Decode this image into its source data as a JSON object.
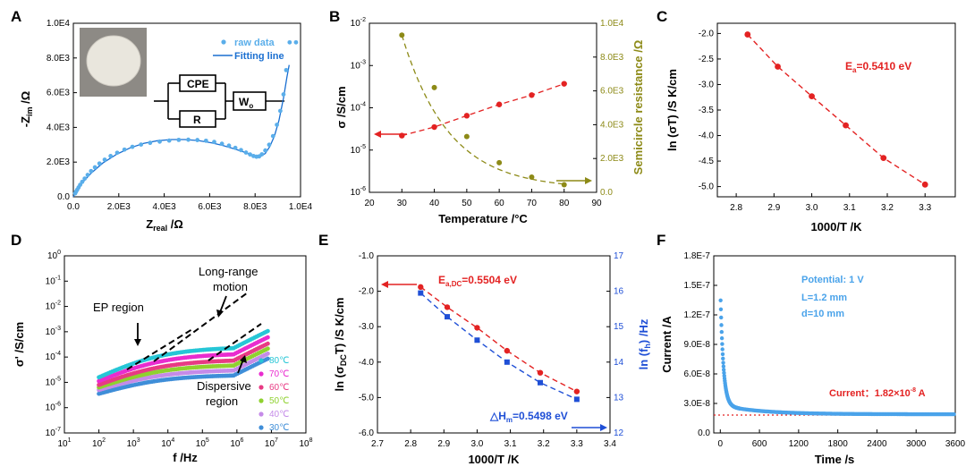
{
  "chart_data": [
    {
      "panel": "A",
      "type": "scatter",
      "xlabel": "Z",
      "xlabel_sub": "real",
      "xlabel_unit": " /Ω",
      "ylabel": "-Z",
      "ylabel_sub": "im",
      "ylabel_unit": " /Ω",
      "xlim": [
        0,
        10000
      ],
      "ylim": [
        0,
        10000
      ],
      "xticks": [
        0,
        2000,
        4000,
        6000,
        8000,
        10000
      ],
      "xtick_labels": [
        "0.0",
        "2.0E3",
        "4.0E3",
        "6.0E3",
        "8.0E3",
        "1.0E4"
      ],
      "yticks": [
        0,
        2000,
        4000,
        6000,
        8000,
        10000
      ],
      "ytick_labels": [
        "0.0",
        "2.0E3",
        "4.0E3",
        "6.0E3",
        "8.0E3",
        "1.0E4"
      ],
      "legend": [
        "raw data",
        "Fitting line"
      ],
      "legend_position": "top-right",
      "circuit": {
        "elements": [
          "CPE",
          "R",
          "W",
          "o"
        ]
      },
      "series": [
        {
          "name": "raw data",
          "marker": "circle",
          "color": "#5aaeea",
          "x": [
            80,
            120,
            170,
            230,
            300,
            390,
            500,
            630,
            780,
            950,
            1150,
            1380,
            1640,
            1930,
            2250,
            2600,
            2980,
            3380,
            3800,
            4220,
            4640,
            5060,
            5460,
            5840,
            6200,
            6540,
            6850,
            7130,
            7380,
            7600,
            7780,
            7930,
            8060,
            8180,
            8300,
            8450,
            8620,
            8790,
            8960,
            9110,
            9250,
            9370,
            9520,
            9800
          ],
          "y": [
            200,
            300,
            410,
            540,
            690,
            860,
            1050,
            1260,
            1480,
            1700,
            1920,
            2140,
            2350,
            2540,
            2720,
            2880,
            3010,
            3110,
            3180,
            3240,
            3280,
            3290,
            3270,
            3230,
            3160,
            3060,
            2950,
            2820,
            2690,
            2550,
            2440,
            2350,
            2310,
            2330,
            2450,
            2670,
            3000,
            3500,
            4150,
            4950,
            5900,
            7300,
            8900,
            8900
          ]
        },
        {
          "name": "Fitting line",
          "color": "#1a6fd1",
          "x": [
            0,
            150,
            400,
            800,
            1300,
            1900,
            2500,
            3100,
            3700,
            4300,
            4900,
            5500,
            6100,
            6600,
            7100,
            7500,
            7800,
            8050,
            8250,
            8450,
            8650,
            8850,
            9050,
            9250,
            9400,
            9500
          ],
          "y": [
            0,
            380,
            820,
            1380,
            1950,
            2450,
            2820,
            3080,
            3230,
            3300,
            3300,
            3240,
            3110,
            2950,
            2760,
            2580,
            2440,
            2340,
            2330,
            2500,
            2900,
            3500,
            4400,
            5700,
            6900,
            7600
          ]
        }
      ]
    },
    {
      "panel": "B",
      "type": "scatter",
      "xlabel": "Temperature /°C",
      "ylabel": "σ /S/cm",
      "y2label": "Semicircle resistance /Ω",
      "xlim": [
        20,
        90
      ],
      "ylim_log": [
        1e-06,
        0.01
      ],
      "y2lim": [
        0,
        10000
      ],
      "xticks": [
        20,
        30,
        40,
        50,
        60,
        70,
        80,
        90
      ],
      "yticks_exp": [
        -6,
        -5,
        -4,
        -3,
        -2
      ],
      "y2ticks": [
        0,
        2000,
        4000,
        6000,
        8000,
        10000
      ],
      "y2tick_labels": [
        "0.0",
        "2.0E3",
        "4.0E3",
        "6.0E3",
        "8.0E3",
        "1.0E4"
      ],
      "series": [
        {
          "name": "",
          "color": "#e32222",
          "axis": "left",
          "x": [
            30,
            40,
            50,
            60,
            70,
            80
          ],
          "y": [
            2.2e-05,
            3.5e-05,
            6.5e-05,
            0.00012,
            0.0002,
            0.00037
          ]
        },
        {
          "name": "",
          "color": "#8d8a17",
          "axis": "right",
          "x": [
            30,
            40,
            50,
            60,
            70,
            80
          ],
          "y": [
            9300,
            6200,
            3300,
            1750,
            900,
            450
          ]
        }
      ]
    },
    {
      "panel": "C",
      "type": "scatter",
      "xlabel": "1000/T /K",
      "ylabel": "ln (σT) /S K/cm",
      "xlim": [
        2.75,
        3.38
      ],
      "ylim": [
        -5.2,
        -1.8
      ],
      "xticks": [
        2.8,
        2.9,
        3.0,
        3.1,
        3.2,
        3.3
      ],
      "yticks": [
        -5.0,
        -4.5,
        -4.0,
        -3.5,
        -3.0,
        -2.5,
        -2.0
      ],
      "annotation": {
        "text": "E",
        "sub": "a",
        "rest": "=0.5410 eV",
        "color": "#e32222"
      },
      "series": [
        {
          "name": "",
          "color": "#e32222",
          "x": [
            2.83,
            2.91,
            3.0,
            3.09,
            3.19,
            3.3
          ],
          "y": [
            -2.02,
            -2.65,
            -3.23,
            -3.8,
            -4.44,
            -4.96
          ]
        }
      ]
    },
    {
      "panel": "D",
      "type": "scatter",
      "xlabel": "f /Hz",
      "ylabel": "σ' /S/cm",
      "xlim_log_exp": [
        1,
        8
      ],
      "ylim_log_exp": [
        -7,
        0
      ],
      "xticks_exp": [
        1,
        2,
        3,
        4,
        5,
        6,
        7,
        8
      ],
      "yticks_exp": [
        -7,
        -6,
        -5,
        -4,
        -3,
        -2,
        -1,
        0
      ],
      "annotations": [
        "EP region",
        "Long-range",
        "motion",
        "Dispersive",
        "region"
      ],
      "legend": [
        "80℃",
        "70℃",
        "60℃",
        "50℃",
        "40℃",
        "30℃"
      ],
      "legend_position": "bottom-right",
      "series": [
        {
          "name": "80℃",
          "color": "#26c6d6",
          "low": -4.8,
          "plateau": -3.6
        },
        {
          "name": "70℃",
          "color": "#e92ccf",
          "low": -4.95,
          "plateau": -3.85
        },
        {
          "name": "60℃",
          "color": "#e83a84",
          "low": -5.1,
          "plateau": -4.1
        },
        {
          "name": "50℃",
          "color": "#8fd12f",
          "low": -5.2,
          "plateau": -4.3
        },
        {
          "name": "40℃",
          "color": "#c58be8",
          "low": -5.3,
          "plateau": -4.5
        },
        {
          "name": "30℃",
          "color": "#3f8ed8",
          "low": -5.45,
          "plateau": -4.7
        }
      ]
    },
    {
      "panel": "E",
      "type": "scatter",
      "xlabel": "1000/T /K",
      "ylabel": "ln (σ",
      "ylabel_sub": "DC",
      "ylabel_rest": "T) /S K/cm",
      "y2label": "ln (f",
      "y2label_sub": "h",
      "y2label_rest": ") /Hz",
      "xlim": [
        2.7,
        3.4
      ],
      "ylim": [
        -6.0,
        -1.0
      ],
      "y2lim": [
        12,
        17
      ],
      "xticks": [
        2.7,
        2.8,
        2.9,
        3.0,
        3.1,
        3.2,
        3.3,
        3.4
      ],
      "yticks": [
        -6.0,
        -5.0,
        -4.0,
        -3.0,
        -2.0,
        -1.0
      ],
      "ytick_labels": [
        "-6.0",
        "-5.0",
        "-4.0",
        "-3.0",
        "-2.0",
        "-1.0"
      ],
      "y2ticks": [
        12,
        13,
        14,
        15,
        16,
        17
      ],
      "annotation_red": {
        "text": "E",
        "sub": "a,DC",
        "rest": "=0.5504 eV"
      },
      "annotation_blue": {
        "text": "△H",
        "sub": "m",
        "rest": "=0.5498 eV"
      },
      "series": [
        {
          "name": "",
          "color": "#e32222",
          "axis": "left",
          "x": [
            2.83,
            2.91,
            3.0,
            3.09,
            3.19,
            3.3
          ],
          "y": [
            -1.88,
            -2.45,
            -3.03,
            -3.68,
            -4.3,
            -4.83
          ]
        },
        {
          "name": "",
          "color": "#1f4fd6",
          "axis": "right",
          "x": [
            2.83,
            2.91,
            3.0,
            3.09,
            3.19,
            3.3
          ],
          "y": [
            15.95,
            15.28,
            14.62,
            14.0,
            13.42,
            12.95
          ]
        }
      ]
    },
    {
      "panel": "F",
      "type": "scatter",
      "xlabel": "Time /s",
      "ylabel": "Current /A",
      "xlim": [
        -100,
        3600
      ],
      "ylim": [
        0,
        1.8e-07
      ],
      "xticks": [
        0,
        600,
        1200,
        1800,
        2400,
        3000,
        3600
      ],
      "yticks": [
        0,
        3e-08,
        6e-08,
        9e-08,
        1.2e-07,
        1.5e-07,
        1.8e-07
      ],
      "ytick_labels": [
        "0.0",
        "3.0E-8",
        "6.0E-8",
        "9.0E-8",
        "1.2E-7",
        "1.5E-7",
        "1.8E-7"
      ],
      "info": [
        "Potential: 1 V",
        "L=1.2 mm",
        "d=10 mm"
      ],
      "current_label": "Current：1.82×10",
      "current_exp": "-8",
      "current_unit": " A",
      "baseline": 1.82e-08,
      "series": [
        {
          "name": "",
          "color": "#4aa3ea",
          "i0": 1.55e-07,
          "tau": 45,
          "i_inf": 1.9e-08,
          "slow_amp": 1.7e-08,
          "slow_tau": 600
        }
      ]
    }
  ],
  "panels": [
    "A",
    "B",
    "C",
    "D",
    "E",
    "F"
  ]
}
